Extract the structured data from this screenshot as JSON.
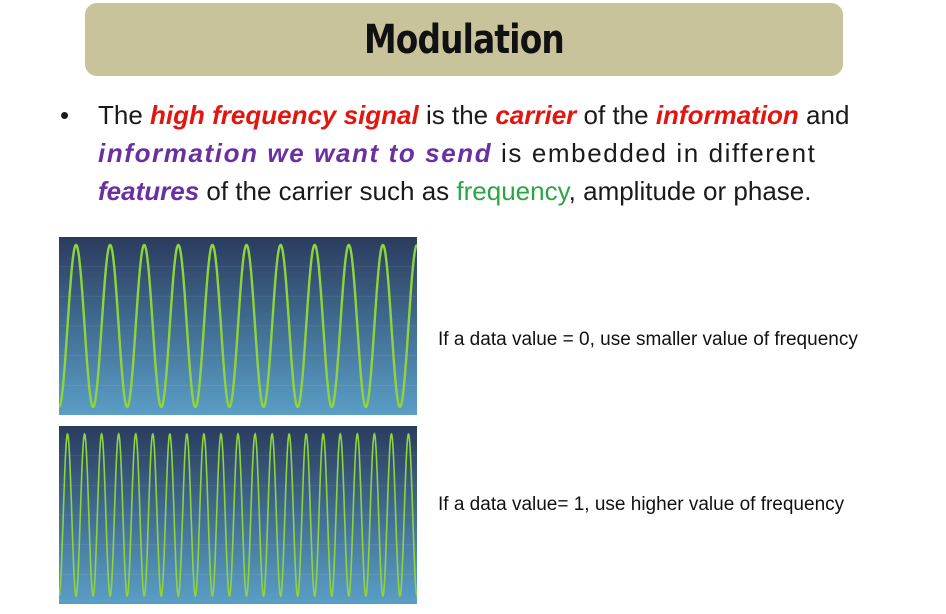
{
  "title": "Modulation",
  "bullet": {
    "p1": "The ",
    "p2": "high frequency signal",
    "p3": " is the ",
    "p4": "carrier",
    "p5": " of the ",
    "p6": "information",
    "p7": " and",
    "p8": "information we want to send",
    "p9": " is embedded in different",
    "p10": "features",
    "p11": " of the carrier such as ",
    "p12": "frequency",
    "p13": ", amplitude or phase."
  },
  "panels": [
    {
      "caption": "If a data value  = 0, use smaller value of frequency",
      "cycles": 10.5
    },
    {
      "caption": "If a data value= 1, use higher value of frequency",
      "cycles": 21
    }
  ],
  "colors": {
    "title_bar": "#c9c39c",
    "emphasis_red": "#e3160f",
    "emphasis_purple": "#6a2fa0",
    "emphasis_green": "#2ca544",
    "wave": "#8fd43a",
    "wave_bg_top": "#2a3c5e",
    "wave_bg_bottom": "#5a9ec6"
  }
}
